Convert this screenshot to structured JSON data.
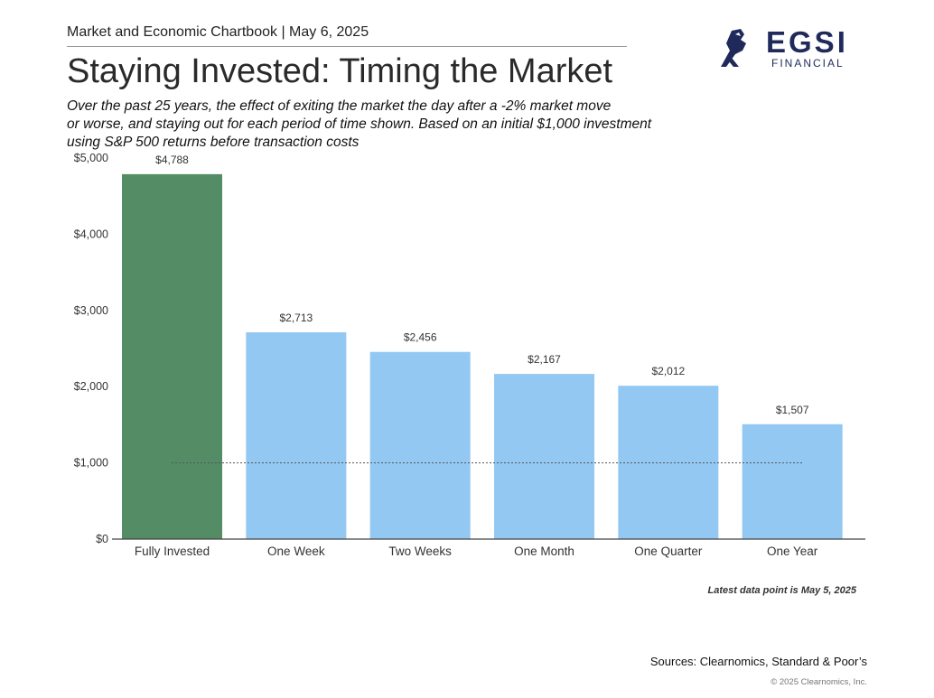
{
  "header": {
    "chartbook": "Market and Economic Chartbook | May 6, 2025"
  },
  "title": "Staying Invested: Timing the Market",
  "subtitle_lines": [
    "Over the past 25 years, the effect of exiting the market the day after a -2% market move",
    "or worse, and staying out for each period of time shown. Based on an initial $1,000 investment",
    "using S&P 500 returns before transaction costs"
  ],
  "logo": {
    "name": "EGSI",
    "sub": "FINANCIAL",
    "icon": "fist-logo-icon"
  },
  "chart_data": {
    "type": "bar",
    "categories": [
      "Fully Invested",
      "One Week",
      "Two Weeks",
      "One Month",
      "One Quarter",
      "One Year"
    ],
    "values": [
      4788,
      2713,
      2456,
      2167,
      2012,
      1507
    ],
    "value_labels": [
      "$4,788",
      "$2,713",
      "$2,456",
      "$2,167",
      "$2,012",
      "$1,507"
    ],
    "ylim": [
      0,
      5000
    ],
    "yticks": [
      0,
      1000,
      2000,
      3000,
      4000,
      5000
    ],
    "ytick_labels": [
      "$0",
      "$1,000",
      "$2,000",
      "$3,000",
      "$4,000",
      "$5,000"
    ],
    "reference_line": 1000,
    "grid": false,
    "colors": {
      "highlight": "#548c66",
      "default": "#93c8f3",
      "reference": "#555555",
      "axis": "#444444"
    }
  },
  "note": "Latest data point is May 5, 2025",
  "sources": "Sources: Clearnomics, Standard & Poor’s",
  "copyright": "© 2025 Clearnomics, Inc."
}
